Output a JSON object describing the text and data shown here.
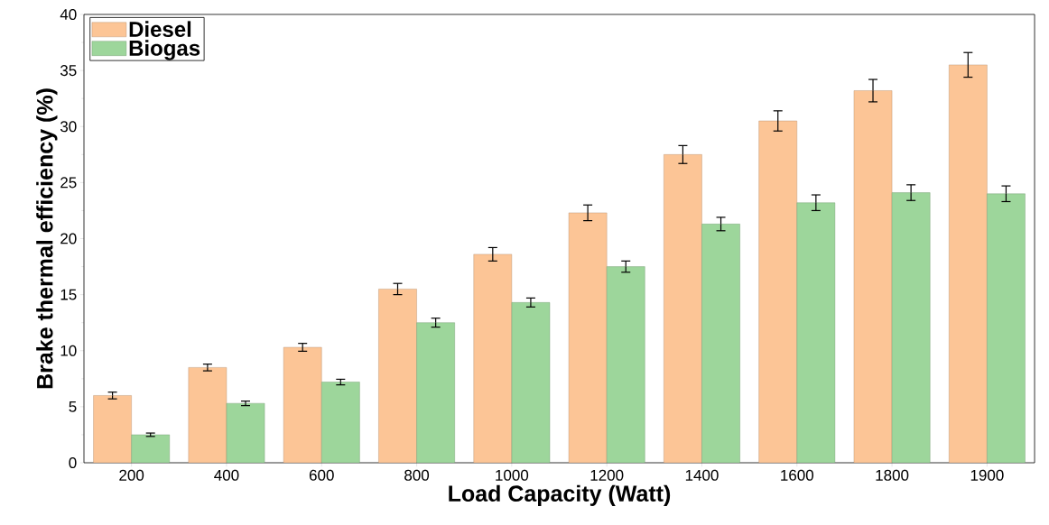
{
  "chart_data": {
    "type": "bar",
    "xlabel": "Load Capacity (Watt)",
    "ylabel": "Brake thermal efficiency (%)",
    "categories": [
      "200",
      "400",
      "600",
      "800",
      "1000",
      "1200",
      "1400",
      "1600",
      "1800",
      "1900"
    ],
    "series": [
      {
        "name": "Diesel",
        "color": "#fcc596",
        "values": [
          6.0,
          8.5,
          10.3,
          15.5,
          18.6,
          22.3,
          27.5,
          30.5,
          33.2,
          35.5
        ],
        "errors": [
          0.3,
          0.3,
          0.35,
          0.5,
          0.6,
          0.7,
          0.8,
          0.9,
          1.0,
          1.1
        ]
      },
      {
        "name": "Biogas",
        "color": "#9dd69b",
        "values": [
          2.5,
          5.3,
          7.2,
          12.5,
          14.3,
          17.5,
          21.3,
          23.2,
          24.1,
          24.0
        ],
        "errors": [
          0.15,
          0.2,
          0.25,
          0.4,
          0.4,
          0.5,
          0.6,
          0.7,
          0.7,
          0.7
        ]
      }
    ],
    "ylim": [
      0,
      40
    ],
    "yticks": [
      0,
      5,
      10,
      15,
      20,
      25,
      30,
      35,
      40
    ],
    "grid": false,
    "legend": "top left"
  }
}
